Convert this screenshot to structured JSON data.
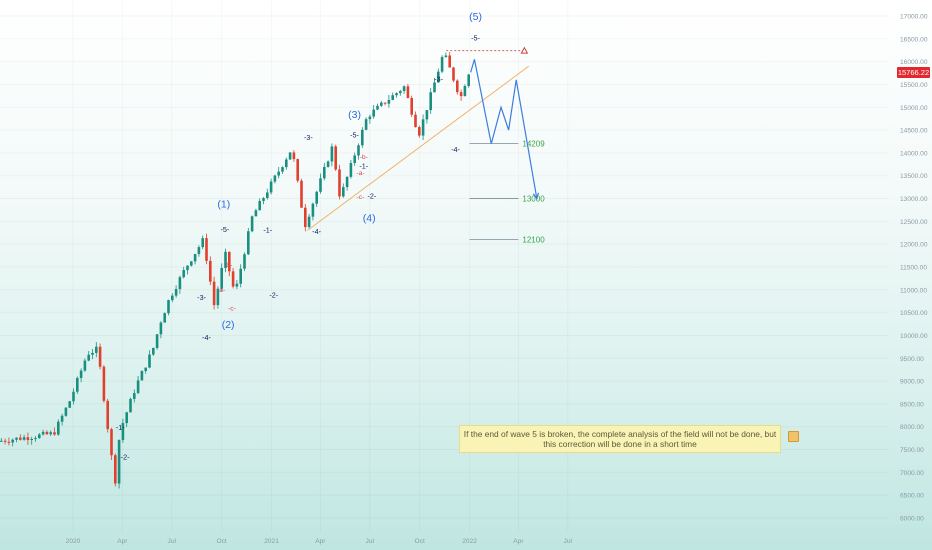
{
  "chart_data": {
    "type": "candlestick",
    "y_axis": {
      "ticks": [
        "17000.00",
        "16500.00",
        "16000.00",
        "15500.00",
        "15000.00",
        "14500.00",
        "14000.00",
        "13500.00",
        "13000.00",
        "12500.00",
        "12000.00",
        "11500.00",
        "11000.00",
        "10500.00",
        "10000.00",
        "9500.00",
        "9000.00",
        "8500.00",
        "8000.00",
        "7500.00",
        "7000.00",
        "6500.00",
        "6000.00"
      ],
      "range": [
        5800,
        17100
      ],
      "current_price": "15766.22"
    },
    "x_axis": {
      "ticks": [
        "2020",
        "Apr",
        "Jul",
        "Oct",
        "2021",
        "Apr",
        "Jul",
        "Oct",
        "2022",
        "Apr",
        "Jul"
      ]
    },
    "price_path": [
      [
        "2019-12",
        7850
      ],
      [
        "2020-01",
        8600
      ],
      [
        "2020-02",
        9600
      ],
      [
        "2020-02-20",
        9700
      ],
      [
        "2020-03-23",
        6750
      ],
      [
        "2020-04",
        7900
      ],
      [
        "2020-05",
        8900
      ],
      [
        "2020-06",
        9700
      ],
      [
        "2020-06-15",
        10300
      ],
      [
        "2020-07",
        10800
      ],
      [
        "2020-08",
        11500
      ],
      [
        "2020-09-02",
        12100
      ],
      [
        "2020-09-22",
        10650
      ],
      [
        "2020-10-12",
        11800
      ],
      [
        "2020-10-30",
        10900
      ],
      [
        "2020-12",
        12600
      ],
      [
        "2021-02-12",
        14100
      ],
      [
        "2021-03-08",
        12400
      ],
      [
        "2021-04-28",
        14150
      ],
      [
        "2021-05-12",
        13000
      ],
      [
        "2021-07",
        14800
      ],
      [
        "2021-09-07",
        15450
      ],
      [
        "2021-10-04",
        14400
      ],
      [
        "2021-11-19",
        16200
      ],
      [
        "2021-12-20",
        15200
      ],
      [
        "2022-01-03",
        15766
      ]
    ],
    "wave_labels": [
      {
        "text": "-1-",
        "style": "minor"
      },
      {
        "text": "-2-",
        "style": "minor"
      },
      {
        "text": "-3-",
        "style": "minor"
      },
      {
        "text": "-4-",
        "style": "minor"
      },
      {
        "text": "-5-",
        "style": "minor"
      },
      {
        "text": "(1)",
        "style": "major"
      },
      {
        "text": "-a-",
        "style": "corrective"
      },
      {
        "text": "-b-",
        "style": "corrective"
      },
      {
        "text": "-c-",
        "style": "corrective"
      },
      {
        "text": "(2)",
        "style": "major"
      },
      {
        "text": "-1-",
        "style": "minor"
      },
      {
        "text": "-2-",
        "style": "minor"
      },
      {
        "text": "-3-",
        "style": "minor"
      },
      {
        "text": "-4-",
        "style": "minor"
      },
      {
        "text": "-5-",
        "style": "minor"
      },
      {
        "text": "(3)",
        "style": "major"
      },
      {
        "text": "-b-",
        "style": "corrective"
      },
      {
        "text": "-a-",
        "style": "corrective"
      },
      {
        "text": "-c-",
        "style": "corrective"
      },
      {
        "text": "-1-",
        "style": "minor"
      },
      {
        "text": "-2-",
        "style": "minor"
      },
      {
        "text": "(4)",
        "style": "major"
      },
      {
        "text": "-3-",
        "style": "minor"
      },
      {
        "text": "-4-",
        "style": "minor"
      },
      {
        "text": "-5-",
        "style": "minor"
      },
      {
        "text": "(5)",
        "style": "major"
      }
    ],
    "levels": [
      {
        "label": "14209",
        "value": 14209
      },
      {
        "label": "13000",
        "value": 13000
      },
      {
        "label": "12100",
        "value": 12100
      }
    ],
    "projection_path": [
      [
        "2022-01-03",
        15766
      ],
      [
        "2022-01-10",
        16050
      ],
      [
        "2022-02-10",
        14200
      ],
      [
        "2022-02-28",
        15000
      ],
      [
        "2022-03-14",
        14500
      ],
      [
        "2022-03-28",
        15600
      ],
      [
        "2022-05-05",
        13000
      ]
    ],
    "annotation_text": "If the end of wave 5 is broken, the complete analysis of the field will not be done, but this correction will be done in a short time"
  },
  "colors": {
    "candle_up": "#1a8f7f",
    "candle_down": "#e2402f",
    "major_wave": "#2a6be0",
    "minor_wave": "#0f1f5a",
    "corrective_wave": "#e0405a",
    "level_label": "#3aa34a",
    "trendline": "#f2b36b",
    "projection": "#3b7de0"
  }
}
